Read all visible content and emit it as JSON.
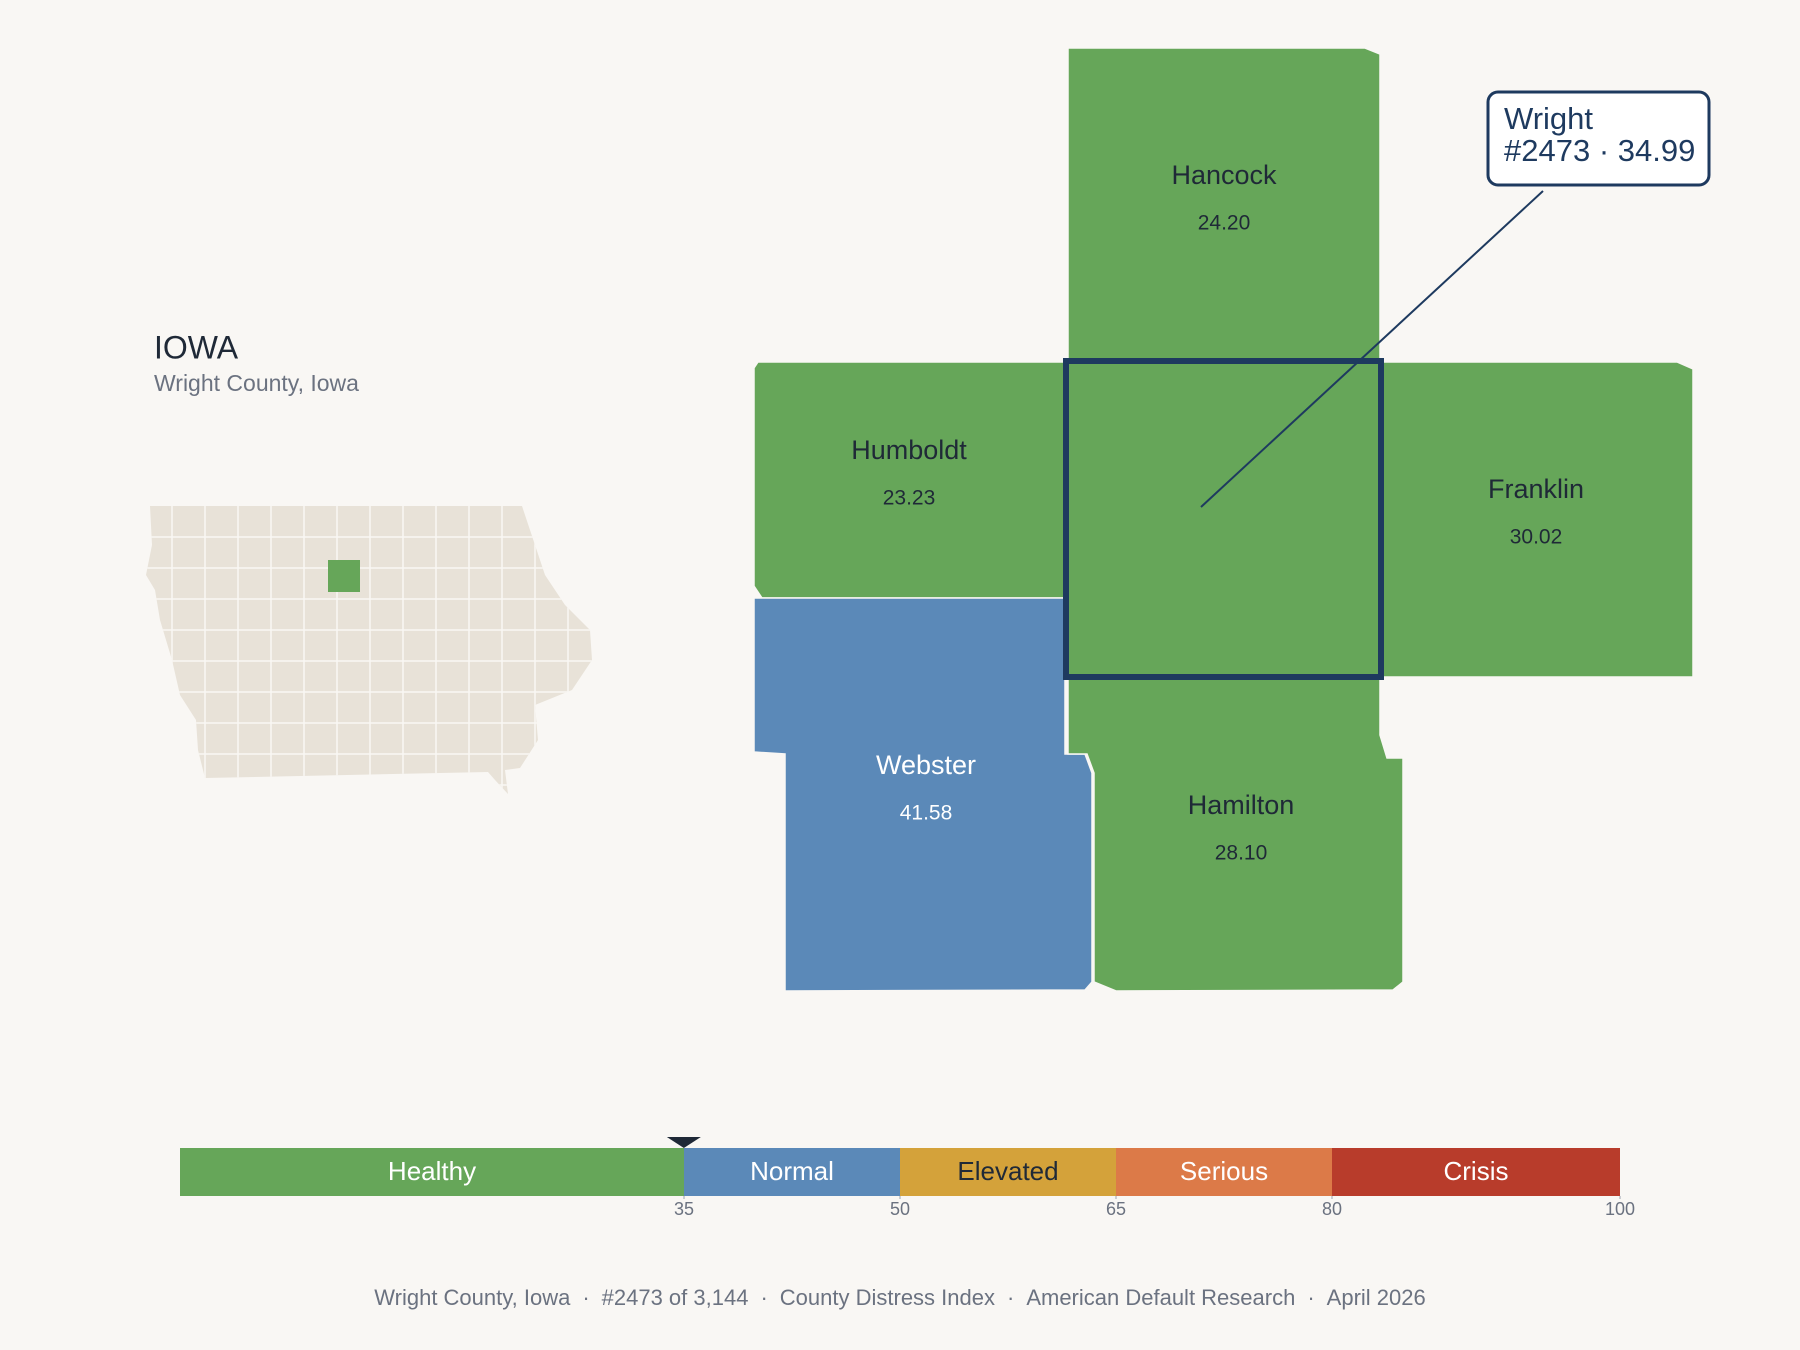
{
  "header": {
    "state": "IOWA",
    "subtitle": "Wright County, Iowa"
  },
  "selected": {
    "name": "Wright",
    "detail": "#2473 · 34.99",
    "value": 34.99,
    "color": "#66a659",
    "border_color": "#1e3a5f"
  },
  "counties": [
    {
      "name": "Hancock",
      "value": "24.20",
      "color": "#66a659",
      "label_color": "#1f2937"
    },
    {
      "name": "Humboldt",
      "value": "23.23",
      "color": "#66a659",
      "label_color": "#1f2937"
    },
    {
      "name": "Franklin",
      "value": "30.02",
      "color": "#66a659",
      "label_color": "#1f2937"
    },
    {
      "name": "Webster",
      "value": "41.58",
      "color": "#5b89b8",
      "label_color": "#ffffff"
    },
    {
      "name": "Hamilton",
      "value": "28.10",
      "color": "#66a659",
      "label_color": "#1f2937"
    }
  ],
  "scale": {
    "range": [
      0,
      100
    ],
    "segments": [
      {
        "label": "Healthy",
        "from": 0,
        "to": 35,
        "color": "#66a659",
        "label_color": "#ffffff"
      },
      {
        "label": "Normal",
        "from": 35,
        "to": 50,
        "color": "#5b89b8",
        "label_color": "#ffffff"
      },
      {
        "label": "Elevated",
        "from": 50,
        "to": 65,
        "color": "#d4a23a",
        "label_color": "#1f2937"
      },
      {
        "label": "Serious",
        "from": 65,
        "to": 80,
        "color": "#dc7a48",
        "label_color": "#ffffff"
      },
      {
        "label": "Crisis",
        "from": 80,
        "to": 100,
        "color": "#b83c2b",
        "label_color": "#ffffff"
      }
    ],
    "ticks": [
      35,
      50,
      65,
      80,
      100
    ]
  },
  "footer": {
    "items": [
      "Wright County, Iowa",
      "#2473 of 3,144",
      "County Distress Index",
      "American Default Research",
      "April 2026"
    ],
    "separator": "·"
  }
}
